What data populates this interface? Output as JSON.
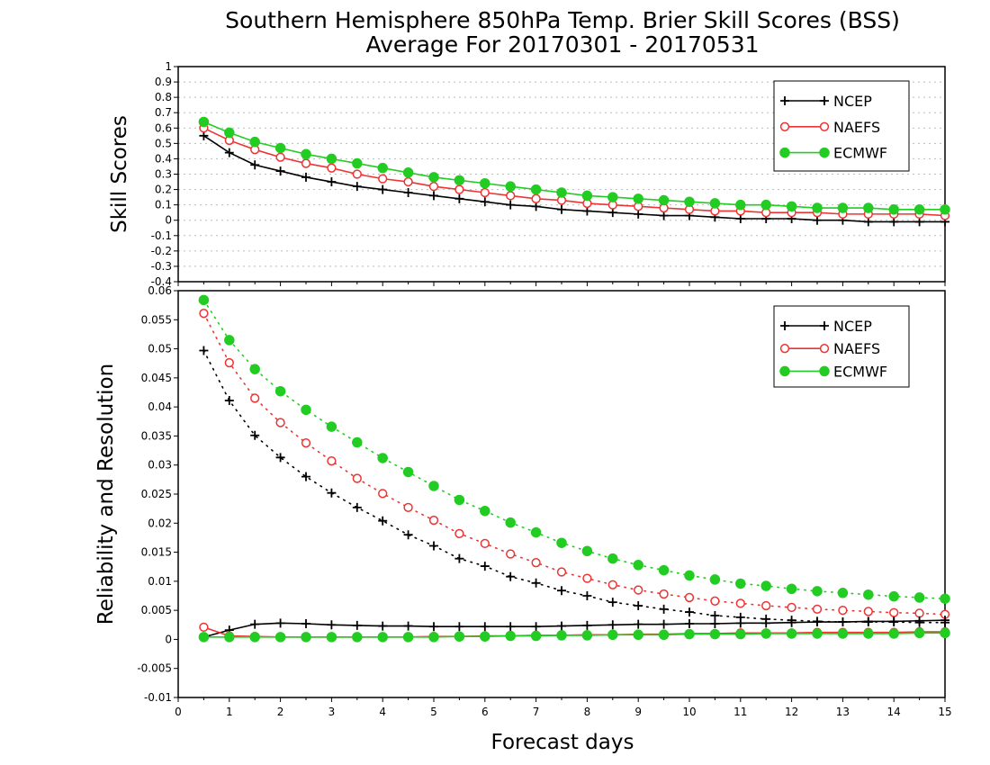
{
  "colors": {
    "NCEP": "#000000",
    "NAEFS": "#ee3333",
    "ECMWF": "#22cc22"
  },
  "chart_data": {
    "type": "line",
    "title": "Southern Hemisphere 850hPa Temp. Brier Skill Scores (BSS)",
    "subtitle": "Average For 20170301 - 20170531",
    "xlabel": "Forecast days",
    "xlim": [
      0,
      15
    ],
    "x_ticks": [
      "0",
      "1",
      "2",
      "3",
      "4",
      "5",
      "6",
      "7",
      "8",
      "9",
      "10",
      "11",
      "12",
      "13",
      "14",
      "15"
    ],
    "x": [
      0.5,
      1,
      1.5,
      2,
      2.5,
      3,
      3.5,
      4,
      4.5,
      5,
      5.5,
      6,
      6.5,
      7,
      7.5,
      8,
      8.5,
      9,
      9.5,
      10,
      10.5,
      11,
      11.5,
      12,
      12.5,
      13,
      13.5,
      14,
      14.5,
      15
    ],
    "panels": [
      {
        "ylabel": "Skill Scores",
        "ylim": [
          -0.4,
          1
        ],
        "y_ticks": [
          "-0.4",
          "-0.3",
          "-0.2",
          "-0.1",
          "0",
          "0.1",
          "0.2",
          "0.3",
          "0.4",
          "0.5",
          "0.6",
          "0.7",
          "0.8",
          "0.9",
          "1"
        ],
        "grid": true,
        "legend": {
          "position": "top-right",
          "labels": [
            "NCEP",
            "NAEFS",
            "ECMWF"
          ]
        },
        "series": [
          {
            "name": "NCEP",
            "marker": "plus",
            "line": "solid",
            "values": [
              0.55,
              0.44,
              0.36,
              0.32,
              0.28,
              0.25,
              0.22,
              0.2,
              0.18,
              0.16,
              0.14,
              0.12,
              0.1,
              0.09,
              0.07,
              0.06,
              0.05,
              0.04,
              0.03,
              0.03,
              0.02,
              0.01,
              0.01,
              0.01,
              0,
              0,
              -0.01,
              -0.01,
              -0.01,
              -0.01
            ]
          },
          {
            "name": "NAEFS",
            "marker": "open-circle",
            "line": "solid",
            "values": [
              0.6,
              0.52,
              0.46,
              0.41,
              0.37,
              0.34,
              0.3,
              0.27,
              0.25,
              0.22,
              0.2,
              0.18,
              0.16,
              0.14,
              0.13,
              0.11,
              0.1,
              0.09,
              0.08,
              0.07,
              0.06,
              0.06,
              0.05,
              0.05,
              0.05,
              0.04,
              0.04,
              0.04,
              0.04,
              0.03
            ]
          },
          {
            "name": "ECMWF",
            "marker": "filled-circle",
            "line": "solid",
            "values": [
              0.64,
              0.57,
              0.51,
              0.47,
              0.43,
              0.4,
              0.37,
              0.34,
              0.31,
              0.28,
              0.26,
              0.24,
              0.22,
              0.2,
              0.18,
              0.16,
              0.15,
              0.14,
              0.13,
              0.12,
              0.11,
              0.1,
              0.1,
              0.09,
              0.08,
              0.08,
              0.08,
              0.07,
              0.07,
              0.07
            ]
          }
        ]
      },
      {
        "ylabel": "Reliability and Resolution",
        "ylim": [
          -0.01,
          0.06
        ],
        "y_ticks": [
          "-0.01",
          "-0.005",
          "0",
          "0.005",
          "0.01",
          "0.015",
          "0.02",
          "0.025",
          "0.03",
          "0.035",
          "0.04",
          "0.045",
          "0.05",
          "0.055",
          "0.06"
        ],
        "grid": false,
        "legend": {
          "position": "top-right",
          "labels": [
            "NCEP",
            "NAEFS",
            "ECMWF"
          ]
        },
        "series": [
          {
            "name": "NCEP",
            "kind": "resolution",
            "marker": "plus",
            "line": "dotted",
            "values": [
              0.0497,
              0.0411,
              0.0351,
              0.0313,
              0.028,
              0.0252,
              0.0227,
              0.0204,
              0.018,
              0.0161,
              0.0139,
              0.0126,
              0.0108,
              0.0097,
              0.0084,
              0.0075,
              0.0064,
              0.0058,
              0.0052,
              0.0047,
              0.0041,
              0.0038,
              0.0035,
              0.0033,
              0.0031,
              0.003,
              0.003,
              0.003,
              0.0029,
              0.0029
            ]
          },
          {
            "name": "NAEFS",
            "kind": "resolution",
            "marker": "open-circle",
            "line": "dotted",
            "values": [
              0.0561,
              0.0476,
              0.0415,
              0.0373,
              0.0338,
              0.0307,
              0.0277,
              0.0251,
              0.0227,
              0.0205,
              0.0182,
              0.0165,
              0.0147,
              0.0132,
              0.0116,
              0.0105,
              0.0094,
              0.0085,
              0.0078,
              0.0072,
              0.0066,
              0.0062,
              0.0058,
              0.0055,
              0.0052,
              0.005,
              0.0048,
              0.0046,
              0.0045,
              0.0043
            ]
          },
          {
            "name": "ECMWF",
            "kind": "resolution",
            "marker": "filled-circle",
            "line": "dotted",
            "values": [
              0.0584,
              0.0515,
              0.0465,
              0.0427,
              0.0395,
              0.0366,
              0.0339,
              0.0312,
              0.0288,
              0.0264,
              0.024,
              0.0221,
              0.0201,
              0.0184,
              0.0166,
              0.0152,
              0.0139,
              0.0128,
              0.0119,
              0.011,
              0.0103,
              0.0096,
              0.0092,
              0.0087,
              0.0083,
              0.008,
              0.0077,
              0.0074,
              0.0072,
              0.007
            ]
          },
          {
            "name": "NCEP",
            "kind": "reliability",
            "marker": "plus",
            "line": "solid",
            "values": [
              0.0004,
              0.0016,
              0.0026,
              0.0028,
              0.0027,
              0.0025,
              0.0024,
              0.0023,
              0.0023,
              0.0022,
              0.0022,
              0.0022,
              0.0022,
              0.0022,
              0.0023,
              0.0024,
              0.0025,
              0.0026,
              0.0026,
              0.0027,
              0.0027,
              0.0028,
              0.0028,
              0.0029,
              0.003,
              0.003,
              0.0031,
              0.0031,
              0.0032,
              0.0033
            ]
          },
          {
            "name": "NAEFS",
            "kind": "reliability",
            "marker": "open-circle",
            "line": "solid",
            "values": [
              0.0021,
              0.0006,
              0.0005,
              0.0004,
              0.0004,
              0.0004,
              0.0004,
              0.0004,
              0.0004,
              0.0005,
              0.0005,
              0.0006,
              0.0006,
              0.0007,
              0.0007,
              0.0008,
              0.0008,
              0.0009,
              0.0009,
              0.001,
              0.001,
              0.0011,
              0.0011,
              0.0011,
              0.0012,
              0.0012,
              0.0012,
              0.0012,
              0.0013,
              0.0013
            ]
          },
          {
            "name": "ECMWF",
            "kind": "reliability",
            "marker": "filled-circle",
            "line": "solid",
            "values": [
              0.0004,
              0.0004,
              0.0004,
              0.0004,
              0.0004,
              0.0004,
              0.0004,
              0.0004,
              0.0004,
              0.0004,
              0.0005,
              0.0005,
              0.0006,
              0.0006,
              0.0007,
              0.0007,
              0.0008,
              0.0008,
              0.0008,
              0.0009,
              0.0009,
              0.0009,
              0.001,
              0.001,
              0.001,
              0.001,
              0.001,
              0.001,
              0.0011,
              0.0011
            ]
          }
        ]
      }
    ]
  }
}
